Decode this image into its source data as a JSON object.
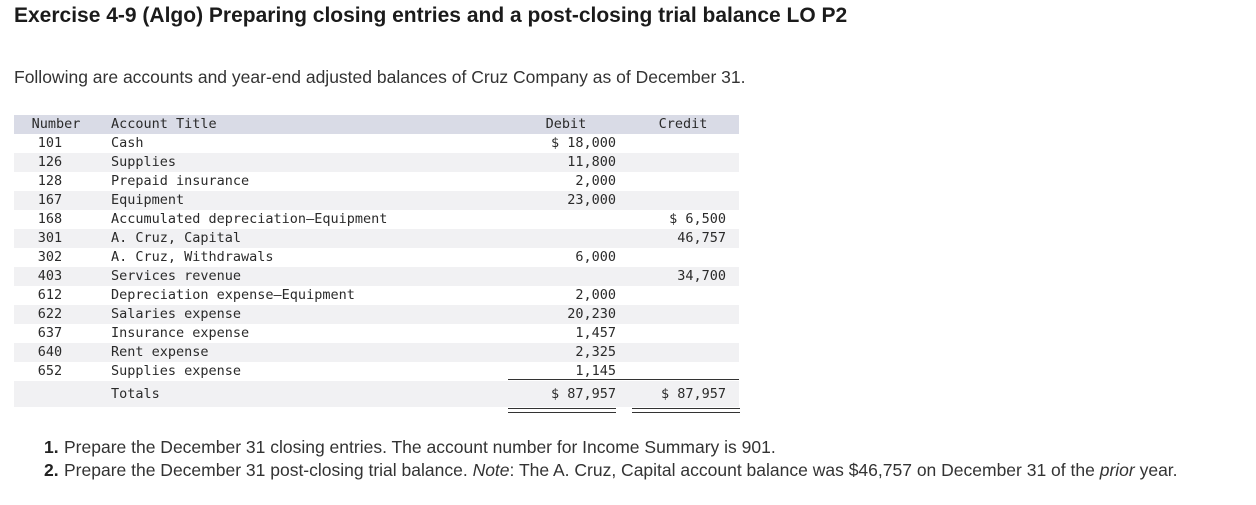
{
  "title": "Exercise 4-9 (Algo) Preparing closing entries and a post-closing trial balance LO P2",
  "intro": "Following are accounts and year-end adjusted balances of Cruz Company as of December 31.",
  "table": {
    "headers": {
      "number": "Number",
      "account_title": "Account Title",
      "debit": "Debit",
      "credit": "Credit"
    },
    "rows": [
      {
        "number": "101",
        "title": "Cash",
        "debit": "$ 18,000",
        "credit": ""
      },
      {
        "number": "126",
        "title": "Supplies",
        "debit": "11,800",
        "credit": ""
      },
      {
        "number": "128",
        "title": "Prepaid insurance",
        "debit": "2,000",
        "credit": ""
      },
      {
        "number": "167",
        "title": "Equipment",
        "debit": "23,000",
        "credit": ""
      },
      {
        "number": "168",
        "title": "Accumulated depreciation—Equipment",
        "debit": "",
        "credit": "$ 6,500"
      },
      {
        "number": "301",
        "title": "A. Cruz, Capital",
        "debit": "",
        "credit": "46,757"
      },
      {
        "number": "302",
        "title": "A. Cruz, Withdrawals",
        "debit": "6,000",
        "credit": ""
      },
      {
        "number": "403",
        "title": "Services revenue",
        "debit": "",
        "credit": "34,700"
      },
      {
        "number": "612",
        "title": "Depreciation expense—Equipment",
        "debit": "2,000",
        "credit": ""
      },
      {
        "number": "622",
        "title": "Salaries expense",
        "debit": "20,230",
        "credit": ""
      },
      {
        "number": "637",
        "title": "Insurance expense",
        "debit": "1,457",
        "credit": ""
      },
      {
        "number": "640",
        "title": "Rent expense",
        "debit": "2,325",
        "credit": ""
      },
      {
        "number": "652",
        "title": "Supplies expense",
        "debit": "1,145",
        "credit": ""
      }
    ],
    "totals": {
      "label": "Totals",
      "debit": "$ 87,957",
      "credit": "$ 87,957"
    }
  },
  "instructions": {
    "item1": {
      "num": "1.",
      "text": "Prepare the December 31 closing entries. The account number for Income Summary is 901."
    },
    "item2": {
      "num": "2.",
      "text_a": "Prepare the December 31 post-closing trial balance. ",
      "note_label": "Note",
      "text_b": ": The A. Cruz, Capital account balance was $46,757 on December 31 of the ",
      "prior": "prior",
      "text_c": " year."
    }
  }
}
